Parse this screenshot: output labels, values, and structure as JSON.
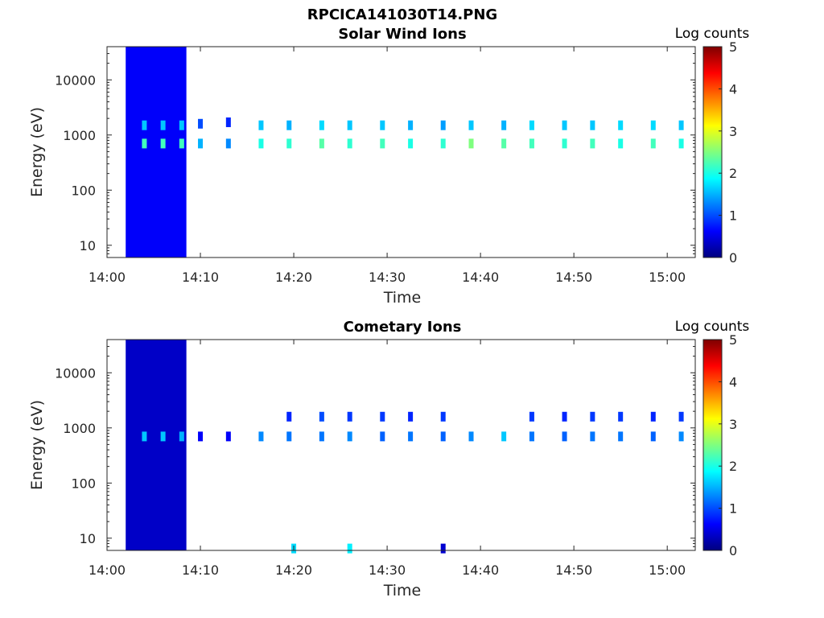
{
  "figure_title": "RPCICA141030T14.PNG",
  "colormap": [
    "#00007f",
    "#0000ff",
    "#007fff",
    "#00ffff",
    "#7fff7f",
    "#ffff00",
    "#ff7f00",
    "#ff0000",
    "#7f0000"
  ],
  "chart_data": [
    {
      "type": "heatmap",
      "title": "Solar Wind Ions",
      "xlabel": "Time",
      "ylabel": "Energy (eV)",
      "y_scale": "log",
      "xlim": [
        "14:00",
        "15:03"
      ],
      "ylim": [
        6,
        40000
      ],
      "x_ticks": [
        "14:00",
        "14:10",
        "14:20",
        "14:30",
        "14:40",
        "14:50",
        "15:00"
      ],
      "y_ticks": [
        "10",
        "100",
        "1000",
        "10000"
      ],
      "colorbar": {
        "label": "Log counts",
        "min": 0,
        "max": 5,
        "ticks": [
          "0",
          "1",
          "2",
          "3",
          "4",
          "5"
        ]
      },
      "bands": [
        {
          "time_start": "14:02",
          "time_end": "14:08.5",
          "energy_min": 6,
          "energy_max": 40000,
          "level": 0.6
        }
      ],
      "points": [
        {
          "time": "14:04",
          "energy": 700,
          "level": 2.2
        },
        {
          "time": "14:04",
          "energy": 1500,
          "level": 1.6
        },
        {
          "time": "14:06",
          "energy": 700,
          "level": 2.2
        },
        {
          "time": "14:06",
          "energy": 1500,
          "level": 1.6
        },
        {
          "time": "14:08",
          "energy": 700,
          "level": 2.2
        },
        {
          "time": "14:08",
          "energy": 1500,
          "level": 1.6
        },
        {
          "time": "14:10",
          "energy": 700,
          "level": 1.5
        },
        {
          "time": "14:10",
          "energy": 1600,
          "level": 1.0
        },
        {
          "time": "14:13",
          "energy": 700,
          "level": 1.3
        },
        {
          "time": "14:13",
          "energy": 1700,
          "level": 0.8
        },
        {
          "time": "14:16.5",
          "energy": 700,
          "level": 2.0
        },
        {
          "time": "14:16.5",
          "energy": 1500,
          "level": 1.6
        },
        {
          "time": "14:19.5",
          "energy": 700,
          "level": 2.1
        },
        {
          "time": "14:19.5",
          "energy": 1500,
          "level": 1.5
        },
        {
          "time": "14:23",
          "energy": 700,
          "level": 2.3
        },
        {
          "time": "14:23",
          "energy": 1500,
          "level": 1.7
        },
        {
          "time": "14:26",
          "energy": 700,
          "level": 2.1
        },
        {
          "time": "14:26",
          "energy": 1500,
          "level": 1.6
        },
        {
          "time": "14:29.5",
          "energy": 700,
          "level": 2.2
        },
        {
          "time": "14:29.5",
          "energy": 1500,
          "level": 1.6
        },
        {
          "time": "14:32.5",
          "energy": 700,
          "level": 2.0
        },
        {
          "time": "14:32.5",
          "energy": 1500,
          "level": 1.5
        },
        {
          "time": "14:36",
          "energy": 700,
          "level": 2.1
        },
        {
          "time": "14:36",
          "energy": 1500,
          "level": 1.4
        },
        {
          "time": "14:39",
          "energy": 700,
          "level": 2.5
        },
        {
          "time": "14:39",
          "energy": 1500,
          "level": 1.6
        },
        {
          "time": "14:42.5",
          "energy": 700,
          "level": 2.3
        },
        {
          "time": "14:42.5",
          "energy": 1500,
          "level": 1.5
        },
        {
          "time": "14:45.5",
          "energy": 700,
          "level": 2.2
        },
        {
          "time": "14:45.5",
          "energy": 1500,
          "level": 1.7
        },
        {
          "time": "14:49",
          "energy": 700,
          "level": 2.1
        },
        {
          "time": "14:49",
          "energy": 1500,
          "level": 1.6
        },
        {
          "time": "14:52",
          "energy": 700,
          "level": 2.2
        },
        {
          "time": "14:52",
          "energy": 1500,
          "level": 1.6
        },
        {
          "time": "14:55",
          "energy": 700,
          "level": 2.0
        },
        {
          "time": "14:55",
          "energy": 1500,
          "level": 1.7
        },
        {
          "time": "14:58.5",
          "energy": 700,
          "level": 2.2
        },
        {
          "time": "14:58.5",
          "energy": 1500,
          "level": 1.7
        },
        {
          "time": "15:01.5",
          "energy": 700,
          "level": 2.0
        },
        {
          "time": "15:01.5",
          "energy": 1500,
          "level": 1.6
        }
      ]
    },
    {
      "type": "heatmap",
      "title": "Cometary Ions",
      "xlabel": "Time",
      "ylabel": "Energy (eV)",
      "y_scale": "log",
      "xlim": [
        "14:00",
        "15:03"
      ],
      "ylim": [
        6,
        40000
      ],
      "x_ticks": [
        "14:00",
        "14:10",
        "14:20",
        "14:30",
        "14:40",
        "14:50",
        "15:00"
      ],
      "y_ticks": [
        "10",
        "100",
        "1000",
        "10000"
      ],
      "colorbar": {
        "label": "Log counts",
        "min": 0,
        "max": 5,
        "ticks": [
          "0",
          "1",
          "2",
          "3",
          "4",
          "5"
        ]
      },
      "bands": [
        {
          "time_start": "14:02",
          "time_end": "14:08.5",
          "energy_min": 6,
          "energy_max": 40000,
          "level": 0.35
        }
      ],
      "points": [
        {
          "time": "14:04",
          "energy": 700,
          "level": 1.6
        },
        {
          "time": "14:06",
          "energy": 700,
          "level": 1.6
        },
        {
          "time": "14:08",
          "energy": 700,
          "level": 1.5
        },
        {
          "time": "14:10",
          "energy": 700,
          "level": 0.6
        },
        {
          "time": "14:13",
          "energy": 700,
          "level": 0.6
        },
        {
          "time": "14:16.5",
          "energy": 700,
          "level": 1.3
        },
        {
          "time": "14:19.5",
          "energy": 700,
          "level": 1.2
        },
        {
          "time": "14:19.5",
          "energy": 1600,
          "level": 0.8
        },
        {
          "time": "14:23",
          "energy": 700,
          "level": 1.2
        },
        {
          "time": "14:23",
          "energy": 1600,
          "level": 1.0
        },
        {
          "time": "14:26",
          "energy": 700,
          "level": 1.3
        },
        {
          "time": "14:26",
          "energy": 1600,
          "level": 0.9
        },
        {
          "time": "14:29.5",
          "energy": 700,
          "level": 1.1
        },
        {
          "time": "14:29.5",
          "energy": 1600,
          "level": 0.9
        },
        {
          "time": "14:32.5",
          "energy": 700,
          "level": 1.2
        },
        {
          "time": "14:32.5",
          "energy": 1600,
          "level": 0.8
        },
        {
          "time": "14:36",
          "energy": 700,
          "level": 1.1
        },
        {
          "time": "14:36",
          "energy": 1600,
          "level": 0.9
        },
        {
          "time": "14:39",
          "energy": 700,
          "level": 1.3
        },
        {
          "time": "14:42.5",
          "energy": 700,
          "level": 1.6
        },
        {
          "time": "14:45.5",
          "energy": 700,
          "level": 1.2
        },
        {
          "time": "14:45.5",
          "energy": 1600,
          "level": 0.9
        },
        {
          "time": "14:49",
          "energy": 700,
          "level": 1.1
        },
        {
          "time": "14:49",
          "energy": 1600,
          "level": 0.8
        },
        {
          "time": "14:52",
          "energy": 700,
          "level": 1.2
        },
        {
          "time": "14:52",
          "energy": 1600,
          "level": 0.9
        },
        {
          "time": "14:55",
          "energy": 700,
          "level": 1.2
        },
        {
          "time": "14:55",
          "energy": 1600,
          "level": 0.9
        },
        {
          "time": "14:58.5",
          "energy": 700,
          "level": 1.1
        },
        {
          "time": "14:58.5",
          "energy": 1600,
          "level": 0.8
        },
        {
          "time": "15:01.5",
          "energy": 700,
          "level": 1.3
        },
        {
          "time": "15:01.5",
          "energy": 1600,
          "level": 0.9
        },
        {
          "time": "14:20",
          "energy": 6.5,
          "level": 1.7
        },
        {
          "time": "14:26",
          "energy": 6.5,
          "level": 1.8
        },
        {
          "time": "14:36",
          "energy": 6.5,
          "level": 0.4
        }
      ]
    }
  ]
}
